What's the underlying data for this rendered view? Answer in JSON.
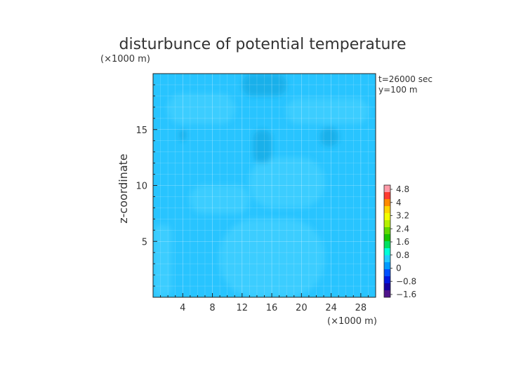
{
  "chart_data": {
    "type": "heatmap",
    "title": "disturbunce of potential temperature",
    "xlabel": "",
    "ylabel": "z-coordinate",
    "x_unit": "(×1000 m)",
    "y_unit": "(×1000 m)",
    "annotations": [
      "t=26000 sec",
      "y=100 m"
    ],
    "xlim": [
      0,
      30
    ],
    "ylim": [
      0,
      20
    ],
    "x_ticks": [
      4,
      8,
      12,
      16,
      20,
      24,
      28
    ],
    "y_ticks": [
      5,
      10,
      15
    ],
    "grid": true,
    "legend_position": "right",
    "colorbar": {
      "labels": [
        "4.8",
        "4",
        "3.2",
        "2.4",
        "1.6",
        "0.8",
        "0",
        "-0.8",
        "-1.6"
      ],
      "colors": [
        "#ff9aa8",
        "#ff3b30",
        "#ff8a00",
        "#ffd400",
        "#f2ff00",
        "#b4f000",
        "#5fd800",
        "#18c400",
        "#00e060",
        "#00ffd8",
        "#22ccff",
        "#009bff",
        "#0050ff",
        "#0018e0",
        "#1400a0",
        "#50148c"
      ]
    },
    "field": {
      "background_color": "#28c4ff",
      "regions": [
        {
          "kind": "warm",
          "x": [
            9,
            23
          ],
          "y": [
            0,
            7
          ]
        },
        {
          "kind": "warm",
          "x": [
            0,
            2.5
          ],
          "y": [
            0,
            6.5
          ]
        },
        {
          "kind": "warm",
          "x": [
            5,
            13
          ],
          "y": [
            7.5,
            10
          ]
        },
        {
          "kind": "warm",
          "x": [
            13,
            23
          ],
          "y": [
            8,
            12.5
          ]
        },
        {
          "kind": "warm",
          "x": [
            2,
            11
          ],
          "y": [
            15.5,
            18.2
          ]
        },
        {
          "kind": "warm",
          "x": [
            18,
            29
          ],
          "y": [
            15.5,
            17.8
          ]
        },
        {
          "kind": "cool",
          "x": [
            13.5,
            16
          ],
          "y": [
            12,
            15
          ]
        },
        {
          "kind": "cool",
          "x": [
            3.5,
            4.5
          ],
          "y": [
            14,
            15
          ]
        },
        {
          "kind": "cool",
          "x": [
            22.5,
            25
          ],
          "y": [
            13.5,
            15.2
          ]
        },
        {
          "kind": "cool",
          "x": [
            12,
            18
          ],
          "y": [
            18,
            20
          ]
        }
      ]
    }
  }
}
